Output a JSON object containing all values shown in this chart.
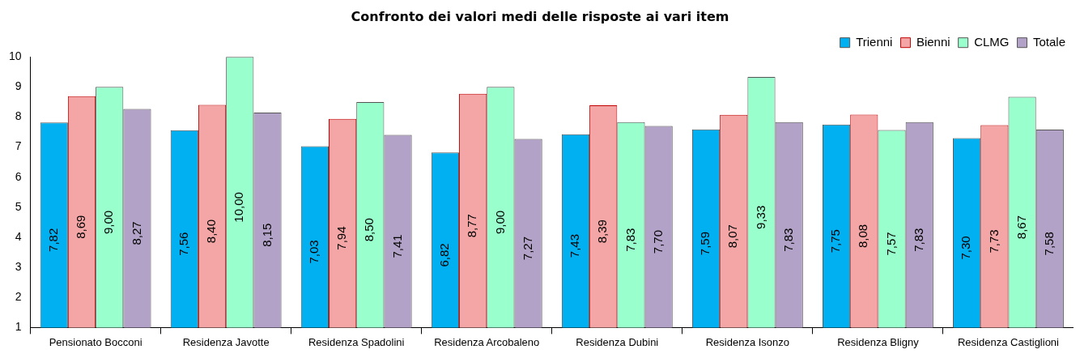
{
  "chart_data": {
    "type": "bar",
    "title": "Confronto dei valori medi delle risposte ai vari item",
    "categories": [
      "Pensionato Bocconi",
      "Residenza Javotte",
      "Residenza Spadolini",
      "Residenza Arcobaleno",
      "Residenza Dubini",
      "Residenza Isonzo",
      "Residenza Bligny",
      "Residenza Castiglioni"
    ],
    "series": [
      {
        "name": "Trienni",
        "color": "#00b0f0",
        "values": [
          7.82,
          7.56,
          7.03,
          6.82,
          7.43,
          7.59,
          7.75,
          7.3
        ],
        "value_labels": [
          "7,82",
          "7,56",
          "7,03",
          "6,82",
          "7,43",
          "7,59",
          "7,75",
          "7,30"
        ]
      },
      {
        "name": "Bienni",
        "color": "#f4a6a6",
        "values": [
          8.69,
          8.4,
          7.94,
          8.77,
          8.39,
          8.07,
          8.08,
          7.73
        ],
        "value_labels": [
          "8,69",
          "8,40",
          "7,94",
          "8,77",
          "8,39",
          "8,07",
          "8,08",
          "7,73"
        ]
      },
      {
        "name": "CLMG",
        "color": "#99ffcc",
        "values": [
          9.0,
          10.0,
          8.5,
          9.0,
          7.83,
          9.33,
          7.57,
          8.67
        ],
        "value_labels": [
          "9,00",
          "10,00",
          "8,50",
          "9,00",
          "7,83",
          "9,33",
          "7,57",
          "8,67"
        ]
      },
      {
        "name": "Totale",
        "color": "#b3a2c7",
        "values": [
          8.27,
          8.15,
          7.41,
          7.27,
          7.7,
          7.83,
          7.83,
          7.58
        ],
        "value_labels": [
          "8,27",
          "8,15",
          "7,41",
          "7,27",
          "7,70",
          "7,83",
          "7,83",
          "7,58"
        ]
      }
    ],
    "ylim": [
      1,
      10
    ],
    "yticks": [
      1,
      2,
      3,
      4,
      5,
      6,
      7,
      8,
      9,
      10
    ],
    "grid": false,
    "legend": "top right"
  }
}
